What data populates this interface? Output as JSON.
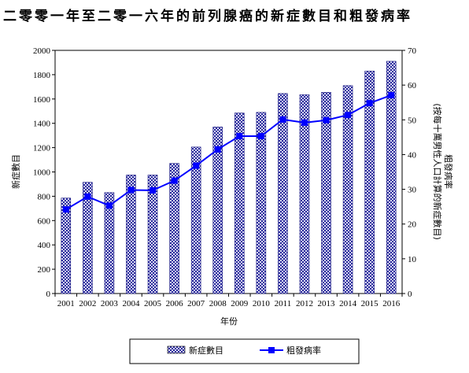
{
  "chart_data": {
    "type": "bar",
    "title": "二零零一年至二零一六年的前列腺癌的新症數目和粗發病率",
    "xlabel": "年份",
    "ylabel": "新症數目",
    "y2label_line1": "粗發病率",
    "y2label_line2": "(按每十萬男性人口計算的新症數目)",
    "categories": [
      "2001",
      "2002",
      "2003",
      "2004",
      "2005",
      "2006",
      "2007",
      "2008",
      "2009",
      "2010",
      "2011",
      "2012",
      "2013",
      "2014",
      "2015",
      "2016"
    ],
    "ylim": [
      0,
      2000
    ],
    "y_ticks": [
      0,
      200,
      400,
      600,
      800,
      1000,
      1200,
      1400,
      1600,
      1800,
      2000
    ],
    "y2lim": [
      0,
      70
    ],
    "y2_ticks": [
      0,
      10,
      20,
      30,
      40,
      50,
      60,
      70
    ],
    "grid": false,
    "legend_position": "bottom",
    "series": [
      {
        "name": "新症數目",
        "type": "bar",
        "axis": "left",
        "color": "#3a3ab0",
        "values": [
          785,
          915,
          830,
          975,
          975,
          1070,
          1205,
          1370,
          1485,
          1490,
          1645,
          1635,
          1655,
          1710,
          1830,
          1910
        ]
      },
      {
        "name": "粗發病率",
        "type": "line",
        "axis": "right",
        "color": "#0000ff",
        "values": [
          24.2,
          27.9,
          25.3,
          29.8,
          29.7,
          32.5,
          36.8,
          41.5,
          45.3,
          45.3,
          50.1,
          49.2,
          49.9,
          51.4,
          54.8,
          57.1
        ]
      }
    ]
  }
}
